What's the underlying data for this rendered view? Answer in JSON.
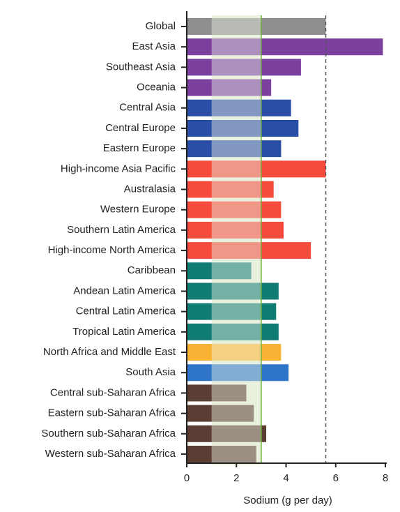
{
  "chart_data": {
    "type": "hbar",
    "xlabel": "Sodium (g per day)",
    "categories": [
      "Global",
      "East Asia",
      "Southeast Asia",
      "Oceania",
      "Central Asia",
      "Central Europe",
      "Eastern Europe",
      "High-income Asia Pacific",
      "Australasia",
      "Western Europe",
      "Southern Latin America",
      "High-income North America",
      "Caribbean",
      "Andean Latin America",
      "Central Latin America",
      "Tropical Latin America",
      "North Africa and Middle East",
      "South Asia",
      "Central sub-Saharan Africa",
      "Eastern sub-Saharan Africa",
      "Southern sub-Saharan Africa",
      "Western sub-Saharan Africa"
    ],
    "values": [
      5.6,
      7.9,
      4.6,
      3.4,
      4.2,
      4.5,
      3.8,
      5.6,
      3.5,
      3.8,
      3.9,
      5.0,
      2.6,
      3.7,
      3.6,
      3.7,
      3.8,
      4.1,
      2.4,
      2.7,
      3.2,
      2.8
    ],
    "colors": [
      "#8e8e8e",
      "#7b3f9e",
      "#7b3f9e",
      "#7b3f9e",
      "#2a4ea6",
      "#2a4ea6",
      "#2a4ea6",
      "#f54b3c",
      "#f54b3c",
      "#f54b3c",
      "#f54b3c",
      "#f54b3c",
      "#0f7b72",
      "#0f7b72",
      "#0f7b72",
      "#0f7b72",
      "#f9b233",
      "#2e74c9",
      "#5a3e33",
      "#5a3e33",
      "#5a3e33",
      "#5a3e33"
    ],
    "shaded_range": [
      1,
      3
    ],
    "xlim": [
      0,
      8
    ],
    "xticks": [
      0,
      2,
      4,
      6,
      8
    ]
  }
}
